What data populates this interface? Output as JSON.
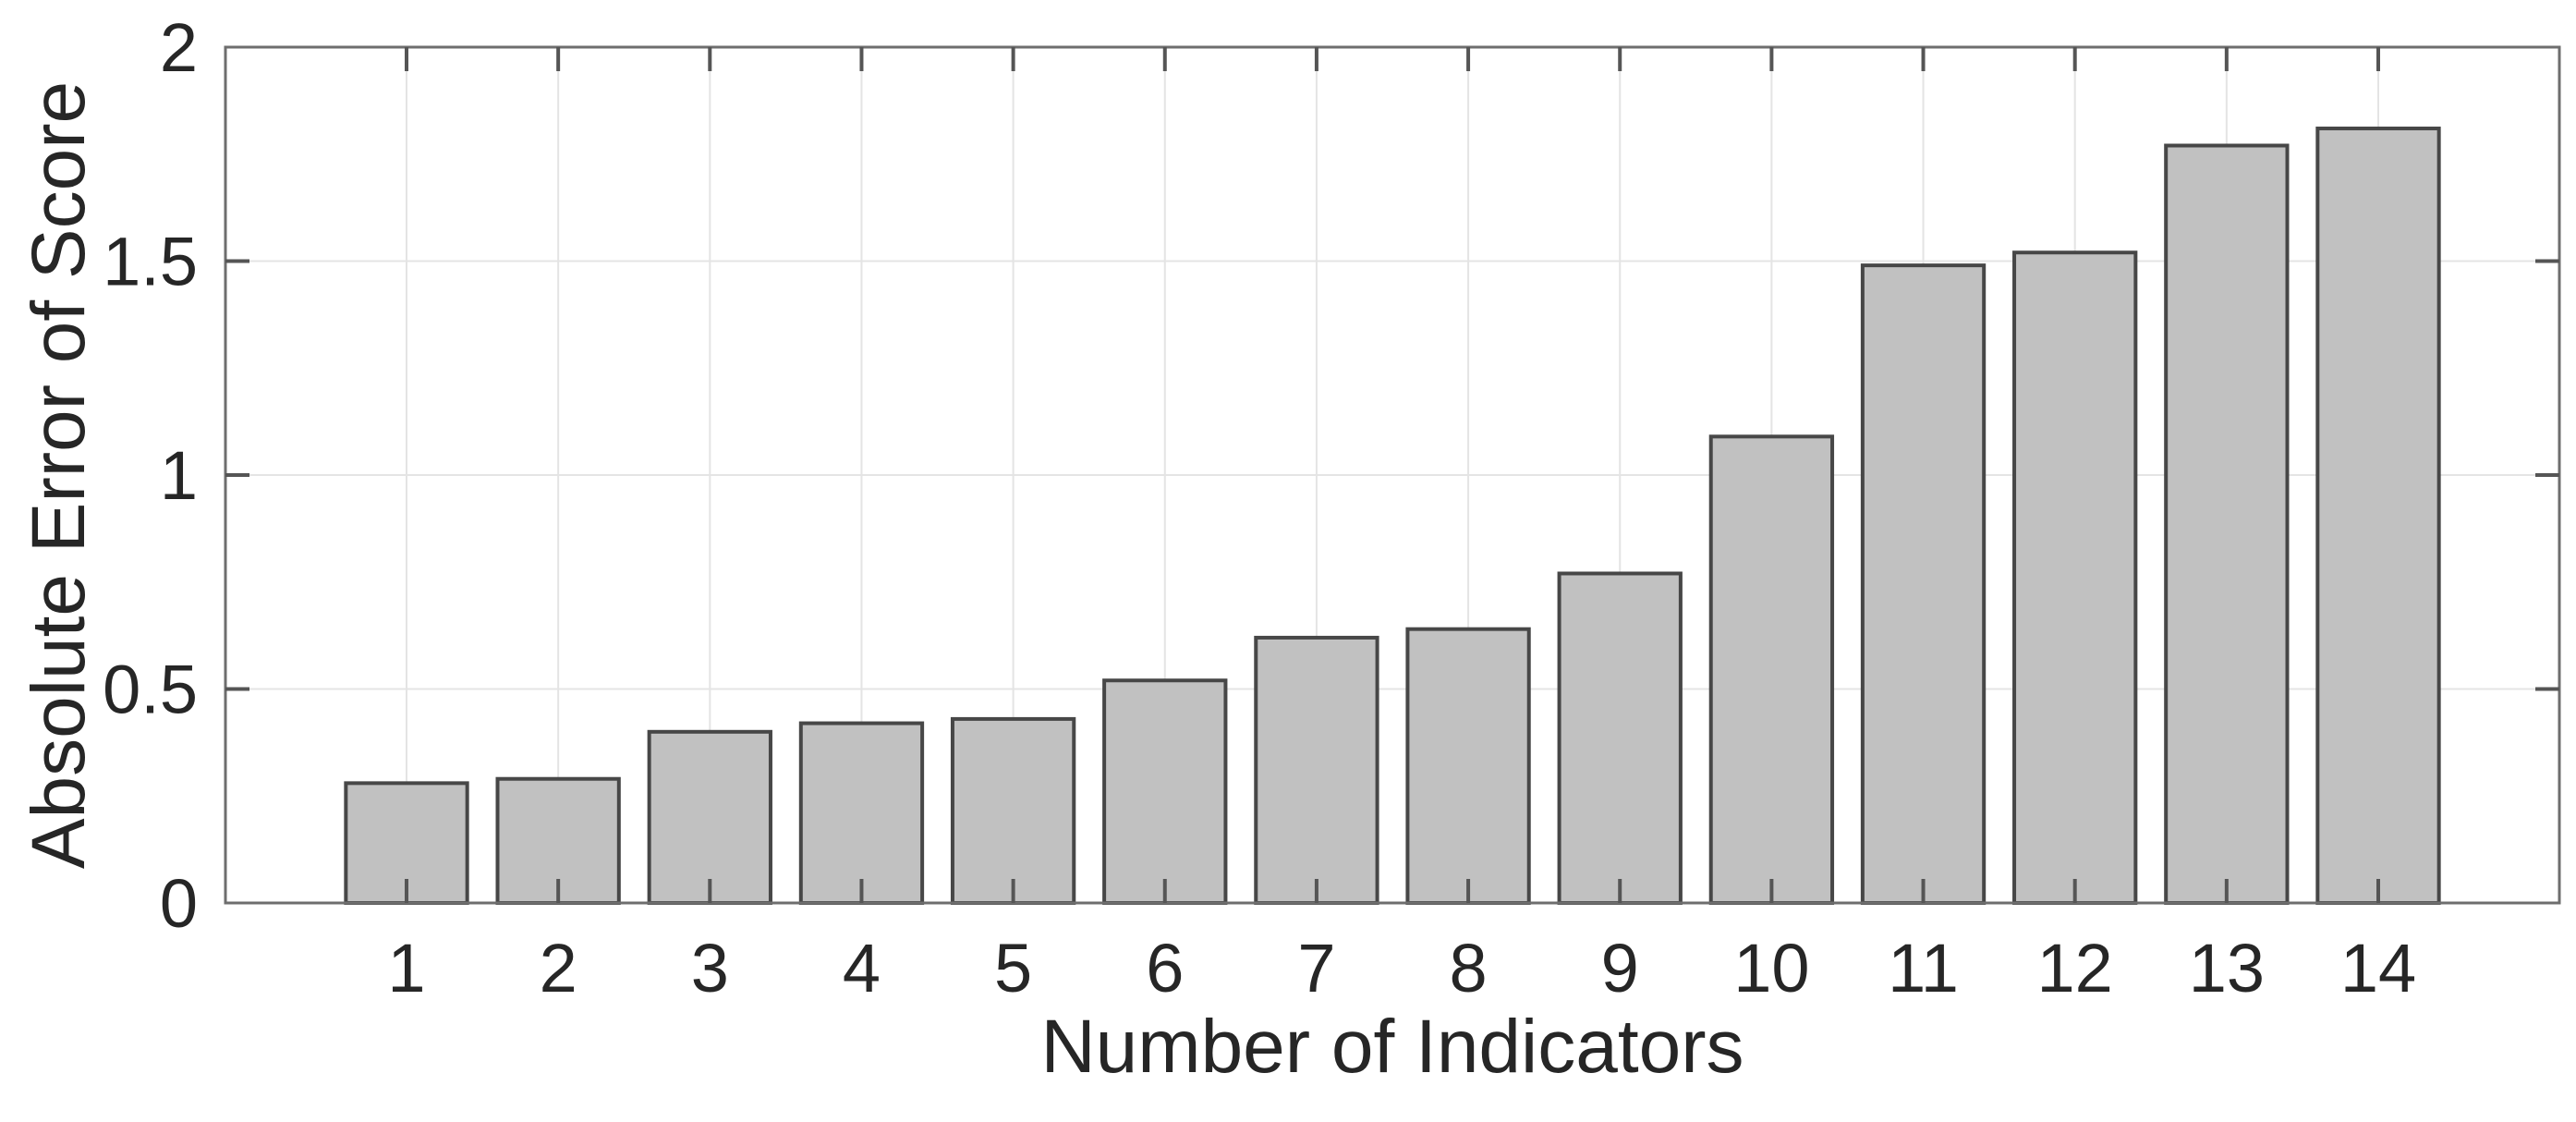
{
  "figure": {
    "background": "#ffffff"
  },
  "chart_data": {
    "type": "bar",
    "title": "",
    "xlabel": "Number of Indicators",
    "ylabel": "Absolute Error of Score",
    "categories": [
      "1",
      "2",
      "3",
      "4",
      "5",
      "6",
      "7",
      "8",
      "9",
      "10",
      "11",
      "12",
      "13",
      "14"
    ],
    "values": [
      0.28,
      0.29,
      0.4,
      0.42,
      0.43,
      0.52,
      0.62,
      0.64,
      0.77,
      1.09,
      1.49,
      1.52,
      1.77,
      1.81
    ],
    "ylim": [
      0,
      2
    ],
    "yticks": [
      0,
      0.5,
      1,
      1.5,
      2
    ],
    "ytick_labels": [
      "0",
      "0.5",
      "1",
      "1.5",
      "2"
    ],
    "grid": true,
    "legend": "none",
    "bar_width_fraction": 0.8,
    "colors": {
      "bar_fill": "#c1c1c1",
      "bar_edge": "#474747",
      "axis": "#6e6e6e",
      "tick": "#555555",
      "grid": "#e4e4e4",
      "text": "#262626"
    }
  }
}
